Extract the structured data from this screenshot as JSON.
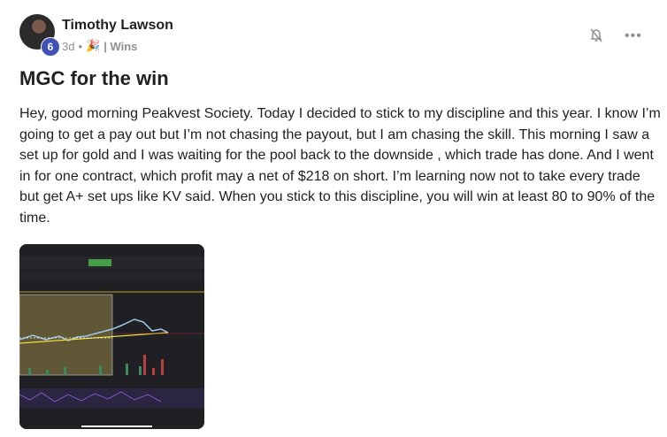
{
  "post": {
    "author": "Timothy Lawson",
    "level": "6",
    "time": "3d",
    "separator": "•",
    "category": "| Wins",
    "title": "MGC for the win",
    "body": "Hey, good morning Peakvest Society. Today I decided to stick to my discipline and this year. I know I’m going to get a pay out but I’m not chasing the payout, but I am chasing the skill. This morning I saw a set up for gold and I was waiting for the pool back to the downside , which trade has done. And I went in for one contract, which profit may a net of $218 on short. I’m learning now not to take every trade but get A+ set ups like KV said. When you stick to this discipline, you will win at least 80 to 90% of the time.",
    "icons": {
      "notify": "bell-off-icon",
      "more": "more-options-icon",
      "emoji": "party-popper-icon"
    }
  },
  "colors": {
    "level_badge": "#3f51b5",
    "meta": "#909090"
  }
}
